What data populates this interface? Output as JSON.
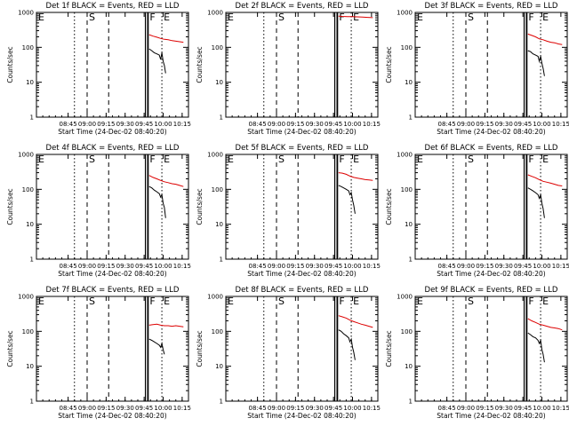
{
  "chart_data": {
    "type": "line",
    "start_time_label": "Start Time (24-Dec-02 08:40:20)",
    "ylabel": "Counts/sec",
    "ylim": [
      1,
      1000
    ],
    "yscale": "log",
    "y_ticks": [
      "1",
      "10",
      "100",
      "1000"
    ],
    "x_range_minutes": [
      500,
      620
    ],
    "x_ticks": [
      {
        "label": "08:45",
        "minute": 525
      },
      {
        "label": "09:00",
        "minute": 540
      },
      {
        "label": "09:15",
        "minute": 555
      },
      {
        "label": "09:30",
        "minute": 570
      },
      {
        "label": "09:45",
        "minute": 585
      },
      {
        "label": "10:00",
        "minute": 600
      },
      {
        "label": "10:15",
        "minute": 615
      }
    ],
    "markers": [
      {
        "label": "E",
        "minute": 500
      },
      {
        "label": "S",
        "minute": 540
      },
      {
        "label": "F",
        "minute": 588
      },
      {
        "label": "E",
        "minute": 599
      }
    ],
    "series_legend": {
      "black": "Events",
      "red": "LLD"
    },
    "colors": {
      "events": "#000000",
      "lld": "#dd0000"
    },
    "panels": [
      {
        "title": "Det 1f BLACK = Events, RED = LLD",
        "lld": [
          [
            589,
            230
          ],
          [
            592,
            210
          ],
          [
            595,
            195
          ],
          [
            598,
            180
          ],
          [
            601,
            170
          ],
          [
            604,
            165
          ],
          [
            607,
            155
          ],
          [
            610,
            150
          ],
          [
            613,
            145
          ],
          [
            616,
            140
          ]
        ],
        "events": [
          [
            589,
            90
          ],
          [
            591,
            80
          ],
          [
            593,
            70
          ],
          [
            595,
            65
          ],
          [
            597,
            60
          ],
          [
            598,
            45
          ],
          [
            599,
            70
          ],
          [
            600,
            40
          ],
          [
            601,
            30
          ],
          [
            602,
            18
          ]
        ]
      },
      {
        "title": "Det 2f BLACK = Events, RED = LLD",
        "lld": [
          [
            589,
            780
          ],
          [
            592,
            770
          ],
          [
            596,
            760
          ],
          [
            600,
            755
          ],
          [
            604,
            745
          ],
          [
            608,
            735
          ],
          [
            612,
            720
          ],
          [
            616,
            710
          ]
        ],
        "events": []
      },
      {
        "title": "Det 3f BLACK = Events, RED = LLD",
        "lld": [
          [
            589,
            240
          ],
          [
            592,
            220
          ],
          [
            595,
            200
          ],
          [
            598,
            175
          ],
          [
            601,
            165
          ],
          [
            604,
            150
          ],
          [
            607,
            140
          ],
          [
            610,
            135
          ],
          [
            613,
            125
          ],
          [
            616,
            120
          ]
        ],
        "events": [
          [
            589,
            80
          ],
          [
            591,
            75
          ],
          [
            593,
            65
          ],
          [
            595,
            60
          ],
          [
            597,
            55
          ],
          [
            598,
            40
          ],
          [
            599,
            55
          ],
          [
            600,
            35
          ],
          [
            601,
            25
          ],
          [
            602,
            15
          ]
        ]
      },
      {
        "title": "Det 4f BLACK = Events, RED = LLD",
        "lld": [
          [
            589,
            250
          ],
          [
            592,
            220
          ],
          [
            595,
            200
          ],
          [
            598,
            180
          ],
          [
            601,
            165
          ],
          [
            604,
            155
          ],
          [
            607,
            145
          ],
          [
            610,
            140
          ],
          [
            613,
            130
          ],
          [
            616,
            120
          ]
        ],
        "events": [
          [
            589,
            120
          ],
          [
            591,
            110
          ],
          [
            593,
            95
          ],
          [
            595,
            85
          ],
          [
            597,
            75
          ],
          [
            598,
            60
          ],
          [
            599,
            70
          ],
          [
            600,
            40
          ],
          [
            601,
            30
          ],
          [
            602,
            15
          ]
        ]
      },
      {
        "title": "Det 5f BLACK = Events, RED = LLD",
        "lld": [
          [
            589,
            300
          ],
          [
            592,
            290
          ],
          [
            595,
            270
          ],
          [
            598,
            240
          ],
          [
            601,
            220
          ],
          [
            604,
            210
          ],
          [
            607,
            200
          ],
          [
            610,
            190
          ],
          [
            613,
            185
          ],
          [
            616,
            180
          ]
        ],
        "events": [
          [
            589,
            130
          ],
          [
            591,
            120
          ],
          [
            593,
            110
          ],
          [
            595,
            100
          ],
          [
            597,
            90
          ],
          [
            598,
            70
          ],
          [
            599,
            80
          ],
          [
            600,
            50
          ],
          [
            601,
            35
          ],
          [
            602,
            20
          ]
        ]
      },
      {
        "title": "Det 6f BLACK = Events, RED = LLD",
        "lld": [
          [
            589,
            260
          ],
          [
            592,
            235
          ],
          [
            595,
            215
          ],
          [
            598,
            190
          ],
          [
            601,
            170
          ],
          [
            604,
            160
          ],
          [
            607,
            150
          ],
          [
            610,
            140
          ],
          [
            613,
            130
          ],
          [
            616,
            125
          ]
        ],
        "events": [
          [
            589,
            110
          ],
          [
            591,
            100
          ],
          [
            593,
            90
          ],
          [
            595,
            80
          ],
          [
            597,
            70
          ],
          [
            598,
            55
          ],
          [
            599,
            70
          ],
          [
            600,
            40
          ],
          [
            601,
            28
          ],
          [
            602,
            15
          ]
        ]
      },
      {
        "title": "Det 7f BLACK = Events, RED = LLD",
        "lld": [
          [
            589,
            150
          ],
          [
            592,
            155
          ],
          [
            595,
            160
          ],
          [
            598,
            150
          ],
          [
            601,
            145
          ],
          [
            604,
            145
          ],
          [
            607,
            140
          ],
          [
            610,
            145
          ],
          [
            613,
            140
          ],
          [
            616,
            135
          ]
        ],
        "events": [
          [
            589,
            60
          ],
          [
            591,
            55
          ],
          [
            593,
            50
          ],
          [
            595,
            45
          ],
          [
            597,
            40
          ],
          [
            598,
            35
          ],
          [
            599,
            45
          ],
          [
            600,
            30
          ],
          [
            601,
            22
          ]
        ]
      },
      {
        "title": "Det 8f BLACK = Events, RED = LLD",
        "lld": [
          [
            589,
            280
          ],
          [
            592,
            260
          ],
          [
            595,
            240
          ],
          [
            598,
            210
          ],
          [
            601,
            190
          ],
          [
            604,
            175
          ],
          [
            607,
            160
          ],
          [
            610,
            150
          ],
          [
            613,
            140
          ],
          [
            616,
            130
          ]
        ],
        "events": [
          [
            589,
            110
          ],
          [
            591,
            100
          ],
          [
            593,
            85
          ],
          [
            595,
            75
          ],
          [
            597,
            65
          ],
          [
            598,
            50
          ],
          [
            599,
            60
          ],
          [
            600,
            35
          ],
          [
            601,
            25
          ],
          [
            602,
            15
          ]
        ]
      },
      {
        "title": "Det 9f BLACK = Events, RED = LLD",
        "lld": [
          [
            589,
            230
          ],
          [
            592,
            200
          ],
          [
            595,
            180
          ],
          [
            598,
            160
          ],
          [
            601,
            150
          ],
          [
            604,
            140
          ],
          [
            607,
            130
          ],
          [
            610,
            125
          ],
          [
            613,
            120
          ],
          [
            616,
            110
          ]
        ],
        "events": [
          [
            589,
            90
          ],
          [
            591,
            80
          ],
          [
            593,
            70
          ],
          [
            595,
            65
          ],
          [
            597,
            55
          ],
          [
            598,
            45
          ],
          [
            599,
            55
          ],
          [
            600,
            30
          ],
          [
            601,
            22
          ],
          [
            602,
            13
          ]
        ]
      }
    ]
  }
}
